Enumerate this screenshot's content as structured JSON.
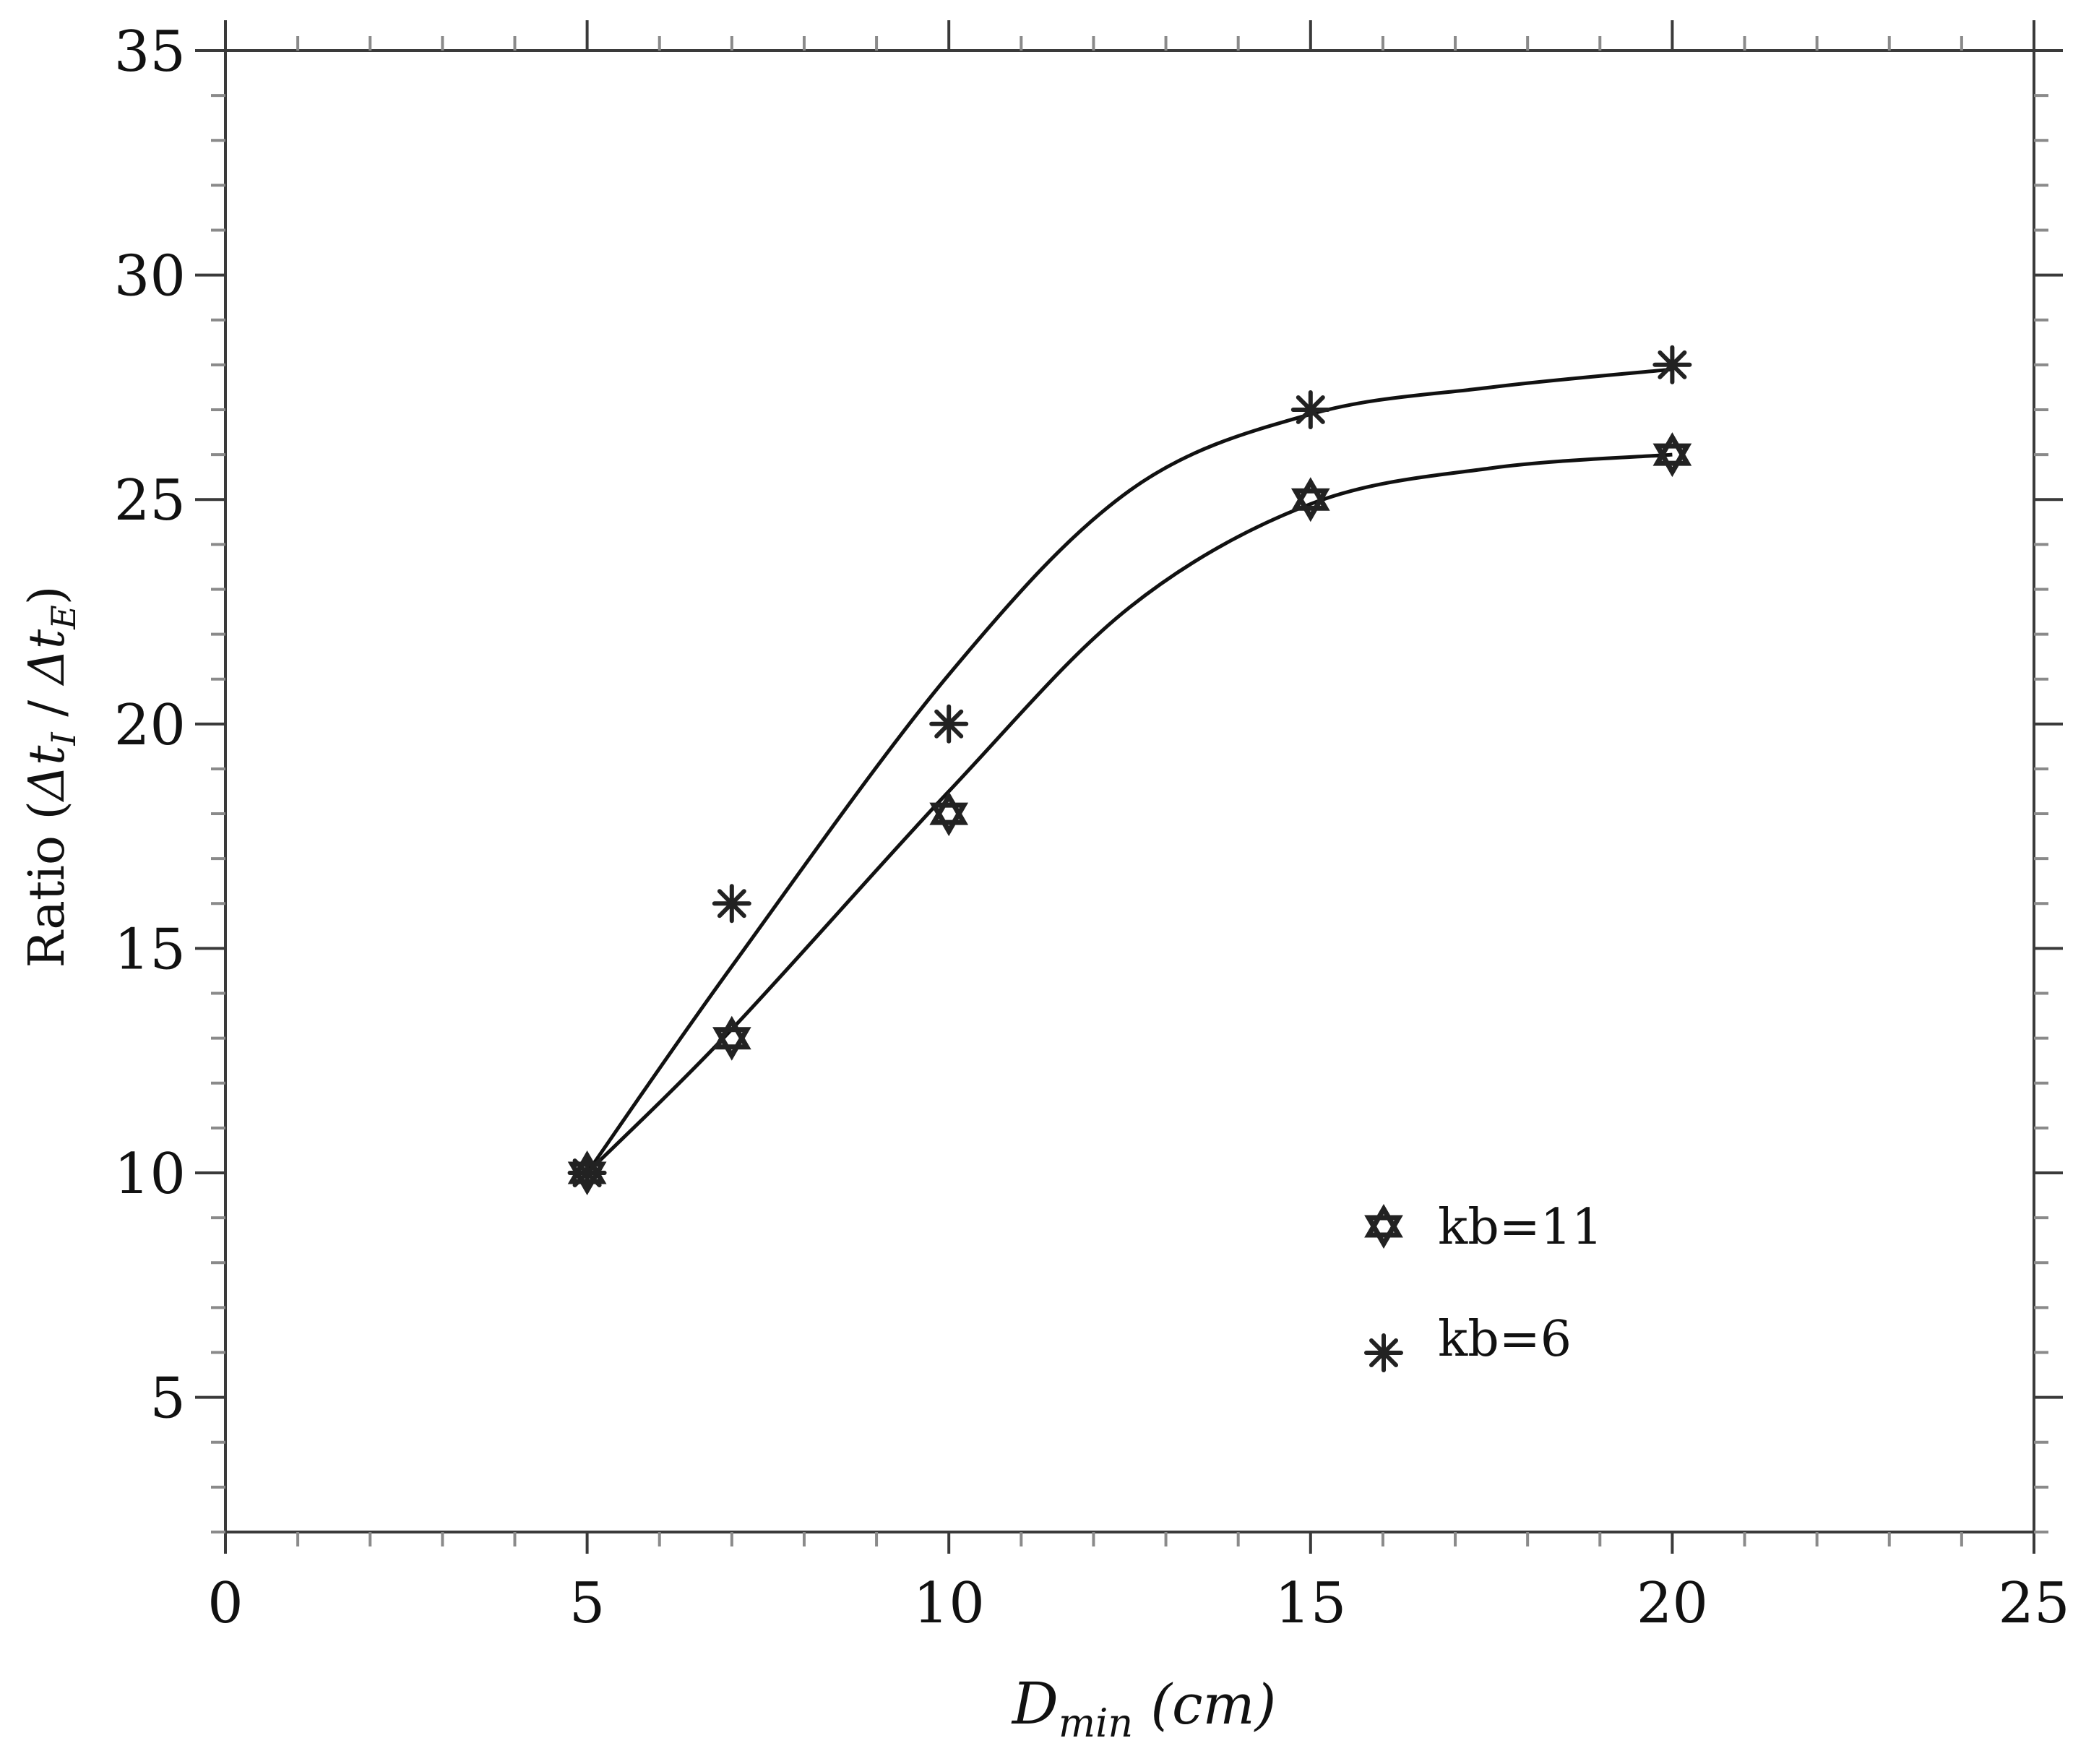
{
  "chart_data": {
    "type": "scatter",
    "xlim": [
      0,
      25
    ],
    "ylim": [
      2,
      35
    ],
    "xticks": [
      0,
      5,
      10,
      15,
      20,
      25
    ],
    "yticks": [
      5,
      10,
      15,
      20,
      25,
      30,
      35
    ],
    "x_minor_step": 1,
    "y_minor_step": 1,
    "xlabel": {
      "symbol": "D",
      "subscript": "min",
      "unit": "(cm)"
    },
    "ylabel": {
      "prefix": "Ratio (",
      "numerator": "Δt",
      "numerator_sub": "I",
      "separator": " / ",
      "denominator": "Δt",
      "denominator_sub": "E",
      "suffix": ")"
    },
    "grid": false,
    "legend_position": "bottom-right",
    "series": [
      {
        "name": "kb=11",
        "marker": "hexagram",
        "x": [
          5,
          7,
          10,
          15,
          20
        ],
        "y": [
          10,
          13,
          18,
          25,
          26
        ],
        "fit_curve": [
          [
            5,
            10
          ],
          [
            7,
            13.2
          ],
          [
            10,
            18.5
          ],
          [
            12.5,
            22.6
          ],
          [
            15,
            24.9
          ],
          [
            17.5,
            25.7
          ],
          [
            20,
            26
          ]
        ]
      },
      {
        "name": "kb=6",
        "marker": "asterisk",
        "x": [
          5,
          7,
          10,
          15,
          20
        ],
        "y": [
          10,
          16,
          20,
          27,
          28
        ],
        "fit_curve": [
          [
            5,
            10
          ],
          [
            7,
            14.6
          ],
          [
            10,
            21.1
          ],
          [
            12.5,
            25.2
          ],
          [
            15,
            26.9
          ],
          [
            17.5,
            27.5
          ],
          [
            20,
            27.9
          ]
        ]
      }
    ]
  },
  "colors": {
    "axis": "#3a3a3a",
    "minor_tick": "#8a8a8a",
    "series_line": "#111111",
    "marker": "#222222"
  }
}
